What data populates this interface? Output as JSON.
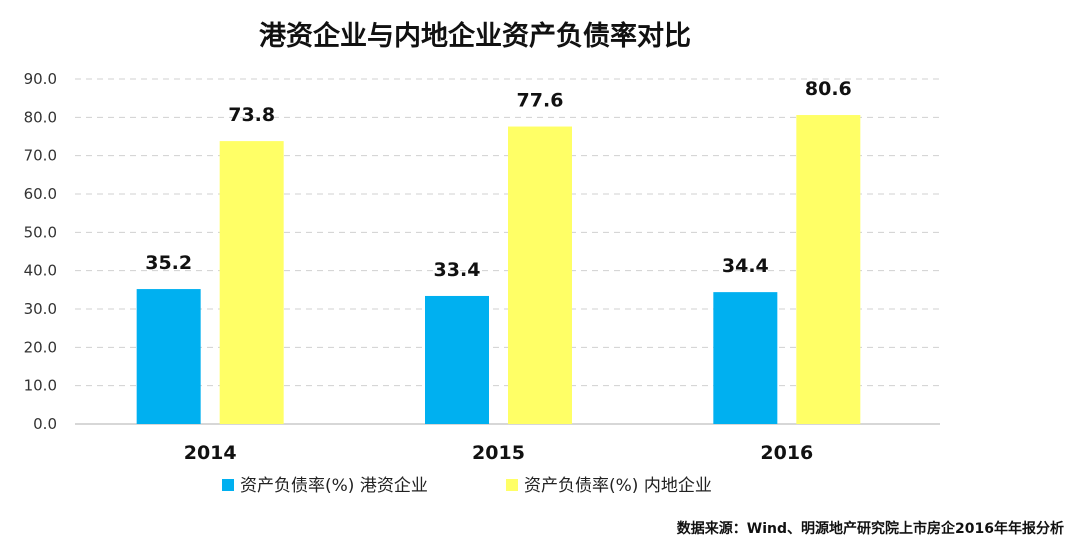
{
  "chart_data": {
    "type": "bar",
    "title": "港资企业与内地企业资产负债率对比",
    "categories": [
      "2014",
      "2015",
      "2016"
    ],
    "series": [
      {
        "name": "资产负债率(%) 港资企业",
        "values": [
          35.2,
          33.4,
          34.4
        ],
        "color": "#00B0F0"
      },
      {
        "name": "资产负债率(%) 内地企业",
        "values": [
          73.8,
          77.6,
          80.6
        ],
        "color": "#FFFF66"
      }
    ],
    "value_labels": [
      [
        "35.2",
        "33.4",
        "34.4"
      ],
      [
        "73.8",
        "77.6",
        "80.6"
      ]
    ],
    "y_ticks": [
      "0.0",
      "10.0",
      "20.0",
      "30.0",
      "40.0",
      "50.0",
      "60.0",
      "70.0",
      "80.0",
      "90.0"
    ],
    "ylim": [
      0,
      90
    ],
    "grid": true,
    "legend_position": "bottom",
    "source": "数据来源：Wind、明源地产研究院上市房企2016年年报分析"
  }
}
